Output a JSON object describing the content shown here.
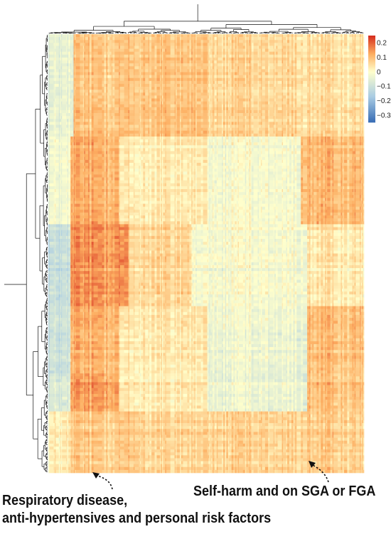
{
  "chart_data": {
    "type": "heatmap",
    "title": "",
    "xlabel": "",
    "ylabel": "",
    "dendrograms": {
      "rows": true,
      "columns": true
    },
    "colorbar": {
      "ticks": [
        "0.2",
        "0.1",
        "0",
        "−0.1",
        "−0.2",
        "−0.3"
      ],
      "range": [
        -0.35,
        0.25
      ],
      "colors": [
        "#3b6fb6",
        "#a9cce3",
        "#ffffcc",
        "#fdae61",
        "#d7301f"
      ]
    },
    "row_block_boundaries": [
      0.0,
      0.23,
      0.43,
      0.62,
      0.77,
      0.86,
      1.0
    ],
    "row_block_column_profile_notes": "rows grouped into clusters; column intensity profile by block",
    "annotations": [
      {
        "id": "respiratory",
        "lines": [
          "Respiratory disease,",
          "anti-hypertensives and personal risk factors"
        ]
      },
      {
        "id": "self-harm",
        "lines": [
          "Self-harm and on SGA or FGA"
        ]
      }
    ]
  }
}
